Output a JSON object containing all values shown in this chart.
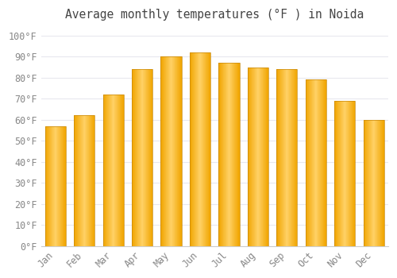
{
  "title": "Average monthly temperatures (°F ) in Noida",
  "months": [
    "Jan",
    "Feb",
    "Mar",
    "Apr",
    "May",
    "Jun",
    "Jul",
    "Aug",
    "Sep",
    "Oct",
    "Nov",
    "Dec"
  ],
  "values": [
    57,
    62,
    72,
    84,
    90,
    92,
    87,
    85,
    84,
    79,
    69,
    60
  ],
  "bar_color_center": "#FFD166",
  "bar_color_edge": "#F0A500",
  "bar_outline_color": "#C8880A",
  "yticks": [
    0,
    10,
    20,
    30,
    40,
    50,
    60,
    70,
    80,
    90,
    100
  ],
  "ylim": [
    0,
    104
  ],
  "background_color": "#ffffff",
  "plot_bg_color": "#ffffff",
  "grid_color": "#e8e8ee",
  "title_fontsize": 10.5,
  "tick_fontsize": 8.5,
  "tick_color": "#888888",
  "title_color": "#444444"
}
